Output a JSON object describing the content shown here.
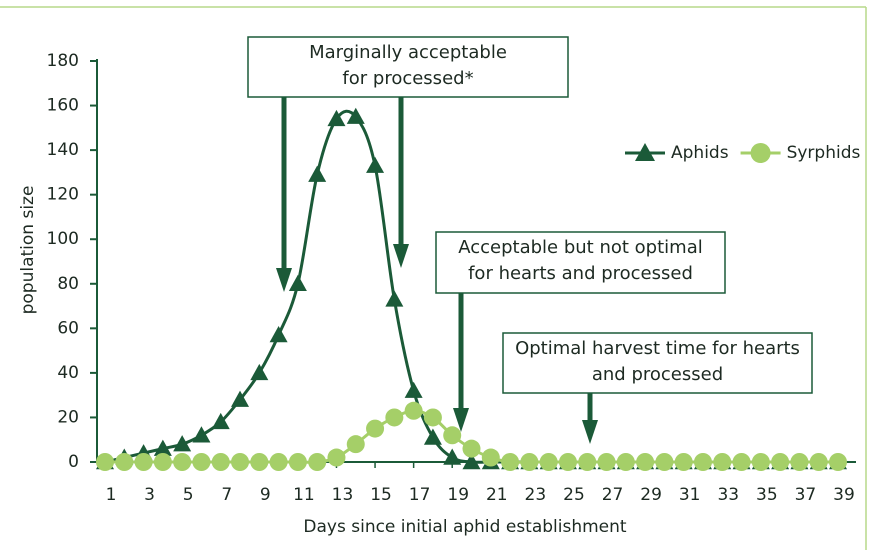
{
  "chart_data": {
    "type": "line",
    "xlabel": "Days since initial aphid establishment",
    "ylabel": "population size",
    "categories": [
      "1",
      null,
      "3",
      null,
      "5",
      null,
      "7",
      null,
      "9",
      null,
      "11",
      null,
      "13",
      null,
      "15",
      null,
      "17",
      null,
      "19",
      null,
      "21",
      null,
      "23",
      null,
      "25",
      null,
      "27",
      null,
      "29",
      null,
      "31",
      null,
      "33",
      null,
      "35",
      null,
      "37",
      null,
      "39"
    ],
    "series": [
      {
        "name": "Aphids",
        "color": "#1b5a38",
        "values": [
          0,
          2,
          4,
          6,
          8,
          12,
          18,
          28,
          40,
          57,
          80,
          129,
          154,
          155,
          133,
          73,
          32,
          11,
          2,
          0,
          0,
          0,
          0,
          0,
          0,
          0,
          0,
          0,
          0,
          0,
          0,
          0,
          0,
          0,
          0,
          0,
          0,
          0,
          0
        ]
      },
      {
        "name": "Syrphids",
        "color": "#a5cf68",
        "values": [
          0,
          0,
          0,
          0,
          0,
          0,
          0,
          0,
          0,
          0,
          0,
          0,
          2,
          8,
          15,
          20,
          23,
          20,
          12,
          6,
          2,
          0,
          0,
          0,
          0,
          0,
          0,
          0,
          0,
          0,
          0,
          0,
          0,
          0,
          0,
          0,
          0,
          0,
          0
        ]
      }
    ],
    "ylim": [
      0,
      180
    ],
    "yticks": [
      0,
      20,
      40,
      60,
      80,
      100,
      120,
      140,
      160,
      180
    ],
    "legend": "top-right",
    "annotations": [
      {
        "lines": [
          "Marginally acceptable",
          "for processed*"
        ]
      },
      {
        "lines": [
          "Acceptable but not optimal",
          "for hearts and processed"
        ]
      },
      {
        "lines": [
          "Optimal harvest time for hearts",
          "and processed"
        ]
      }
    ]
  }
}
